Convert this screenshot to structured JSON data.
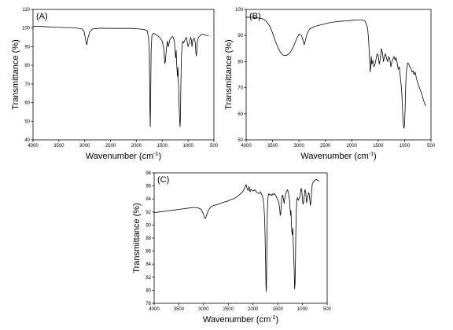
{
  "chart_data": [
    {
      "type": "line",
      "panel": "(A)",
      "xlabel": "Wavenumber (cm",
      "xlabel_sup": "-1",
      "xlabel_end": ")",
      "ylabel": "Transmittance (%)",
      "xlim": [
        4000,
        500
      ],
      "ylim": [
        40,
        110
      ],
      "x_ticks": [
        4000,
        3500,
        3000,
        2500,
        2000,
        1500,
        1000,
        500
      ],
      "y_ticks": [
        40,
        50,
        60,
        70,
        80,
        90,
        100,
        110
      ],
      "series": [
        {
          "x": [
            4000,
            3800,
            3600,
            3400,
            3200,
            3050,
            3010,
            2985,
            2960,
            2935,
            2900,
            2850,
            2700,
            2500,
            2300,
            2100,
            1950,
            1850,
            1790,
            1765,
            1750,
            1740,
            1732,
            1725,
            1715,
            1700,
            1680,
            1650,
            1600,
            1550,
            1500,
            1470,
            1450,
            1440,
            1420,
            1400,
            1385,
            1370,
            1350,
            1320,
            1300,
            1280,
            1260,
            1250,
            1240,
            1230,
            1220,
            1205,
            1195,
            1185,
            1175,
            1165,
            1155,
            1148,
            1140,
            1130,
            1115,
            1100,
            1090,
            1070,
            1050,
            1030,
            1015,
            1000,
            980,
            960,
            950,
            935,
            925,
            915,
            900,
            880,
            860,
            850,
            840,
            830,
            820,
            800,
            780,
            760,
            740,
            720,
            700,
            680,
            660,
            640,
            620,
            600
          ],
          "y": [
            101,
            100.8,
            100.5,
            100.3,
            100.2,
            99.5,
            98,
            94,
            91,
            95,
            98,
            99.5,
            99.9,
            99.8,
            99.8,
            99.8,
            99.5,
            99.3,
            98.5,
            95,
            88,
            60,
            47,
            60,
            88,
            96,
            97,
            97,
            96,
            95,
            93,
            89,
            81,
            82,
            89,
            93,
            90,
            91.5,
            94,
            95,
            95.5,
            94.5,
            92,
            87,
            84,
            88,
            80,
            74,
            79,
            70,
            60,
            51,
            47,
            52,
            68,
            84,
            91,
            93,
            92,
            93,
            94.5,
            95,
            92,
            90,
            92,
            94,
            95,
            93.5,
            90,
            92.5,
            94,
            94.5,
            92,
            87,
            85,
            88,
            93,
            95,
            95.5,
            96,
            96.5,
            96.8,
            96.5,
            96.3,
            96.2,
            96.1,
            96,
            95.8
          ]
        }
      ]
    },
    {
      "type": "line",
      "panel": "(B)",
      "xlabel": "Wavenumber (cm",
      "xlabel_sup": "-1",
      "xlabel_end": ")",
      "ylabel": "Transmittance (%)",
      "xlim": [
        4000,
        500
      ],
      "ylim": [
        50,
        100
      ],
      "x_ticks": [
        4000,
        3500,
        3000,
        2500,
        2000,
        1500,
        1000,
        500
      ],
      "y_ticks": [
        50,
        60,
        70,
        80,
        90,
        100
      ],
      "series": [
        {
          "x": [
            4000,
            3900,
            3800,
            3700,
            3650,
            3600,
            3550,
            3500,
            3450,
            3400,
            3350,
            3300,
            3250,
            3200,
            3150,
            3100,
            3050,
            3000,
            2950,
            2920,
            2900,
            2880,
            2850,
            2800,
            2700,
            2600,
            2500,
            2400,
            2300,
            2200,
            2100,
            2000,
            1900,
            1800,
            1750,
            1700,
            1680,
            1660,
            1650,
            1640,
            1630,
            1620,
            1600,
            1580,
            1560,
            1540,
            1520,
            1500,
            1480,
            1460,
            1440,
            1420,
            1400,
            1380,
            1360,
            1340,
            1320,
            1300,
            1280,
            1260,
            1240,
            1220,
            1200,
            1180,
            1160,
            1140,
            1120,
            1100,
            1080,
            1060,
            1050,
            1040,
            1030,
            1020,
            1010,
            1000,
            990,
            980,
            970,
            960,
            950,
            940,
            920,
            900,
            880,
            860,
            840,
            820,
            800,
            780,
            760,
            740,
            720,
            700,
            680,
            660,
            640,
            620,
            600
          ],
          "y": [
            97,
            97,
            96.8,
            96.5,
            96,
            95,
            93.5,
            91,
            88,
            85.5,
            83.5,
            82.5,
            82.3,
            82.8,
            84,
            86,
            88.5,
            90.5,
            90,
            88,
            86.5,
            88,
            90.5,
            92.5,
            93.5,
            94,
            94.5,
            95,
            95.3,
            95.5,
            95.6,
            95.8,
            96,
            96,
            95.5,
            93,
            88,
            80,
            76,
            78,
            82,
            79,
            80.5,
            78,
            79,
            81,
            83,
            82.5,
            79,
            81,
            85,
            83.5,
            80,
            82,
            83,
            81,
            80,
            82,
            81,
            78,
            80,
            81,
            82,
            80.5,
            81.5,
            79.5,
            77,
            78,
            74,
            70,
            67,
            62,
            58,
            55,
            54.5,
            56,
            62,
            70,
            75,
            77,
            78.5,
            79.5,
            79,
            78,
            77.5,
            76,
            76.5,
            75,
            76,
            74,
            72.5,
            71,
            70,
            69,
            68,
            66.5,
            65,
            64,
            63
          ]
        }
      ]
    },
    {
      "type": "line",
      "panel": "(C)",
      "xlabel": "Wavenumber (cm",
      "xlabel_sup": "-1",
      "xlabel_end": ")",
      "ylabel": "Transmittance (%)",
      "xlim": [
        4000,
        500
      ],
      "ylim": [
        78,
        98
      ],
      "x_ticks": [
        4000,
        3500,
        3000,
        2500,
        2000,
        1500,
        1000,
        500
      ],
      "y_ticks": [
        78,
        80,
        82,
        84,
        86,
        88,
        90,
        92,
        94,
        96,
        98
      ],
      "series": [
        {
          "x": [
            4000,
            3900,
            3800,
            3700,
            3600,
            3500,
            3400,
            3300,
            3200,
            3100,
            3050,
            3010,
            2985,
            2960,
            2935,
            2900,
            2850,
            2800,
            2700,
            2600,
            2500,
            2450,
            2400,
            2350,
            2300,
            2250,
            2200,
            2160,
            2140,
            2120,
            2100,
            2080,
            2060,
            2040,
            2000,
            1960,
            1920,
            1880,
            1850,
            1820,
            1800,
            1780,
            1765,
            1755,
            1745,
            1738,
            1730,
            1725,
            1718,
            1710,
            1700,
            1690,
            1680,
            1660,
            1640,
            1620,
            1600,
            1580,
            1560,
            1540,
            1520,
            1500,
            1480,
            1460,
            1450,
            1440,
            1430,
            1420,
            1410,
            1400,
            1385,
            1370,
            1350,
            1320,
            1300,
            1280,
            1260,
            1250,
            1240,
            1232,
            1225,
            1215,
            1205,
            1195,
            1185,
            1175,
            1165,
            1158,
            1150,
            1142,
            1135,
            1125,
            1115,
            1100,
            1085,
            1070,
            1050,
            1030,
            1020,
            1010,
            1000,
            990,
            975,
            960,
            950,
            935,
            925,
            915,
            900,
            880,
            870,
            860,
            850,
            840,
            830,
            820,
            810,
            800,
            780,
            760,
            740,
            720,
            700,
            680,
            660
          ],
          "y": [
            91.9,
            92,
            92.1,
            92.2,
            92.3,
            92.4,
            92.5,
            92.6,
            92.7,
            92.6,
            92.4,
            91.8,
            91.2,
            91,
            91.6,
            92.3,
            92.8,
            93,
            93.2,
            93.5,
            93.7,
            93.9,
            94,
            94.2,
            94.5,
            94.8,
            95.2,
            95.8,
            96.2,
            95.6,
            95.3,
            95.9,
            95.1,
            95.5,
            95.2,
            95.4,
            95,
            94.8,
            95.1,
            94.6,
            94.2,
            93,
            91,
            88,
            84,
            80.6,
            79.8,
            83,
            88,
            92,
            94,
            94.6,
            94.8,
            94.6,
            94.7,
            94.5,
            94.8,
            94.7,
            94.8,
            94.5,
            94.2,
            93.8,
            93.5,
            92.5,
            91.5,
            91.7,
            92.8,
            93.8,
            94.5,
            94.6,
            94,
            93.3,
            94.5,
            95.2,
            95.4,
            94.8,
            93.8,
            92.5,
            91.5,
            92.2,
            90.5,
            89,
            88.5,
            89.5,
            87,
            85,
            82.5,
            80.2,
            81,
            84,
            88.5,
            92,
            93.8,
            94.2,
            93.8,
            94,
            94.4,
            95.5,
            95.6,
            95,
            93.8,
            93.2,
            93.6,
            94.6,
            95.4,
            95.2,
            94.2,
            93.4,
            94.2,
            94.8,
            95,
            94.5,
            93.8,
            93,
            93.5,
            94.6,
            95.5,
            96.3,
            96.6,
            96.8,
            96.9,
            97,
            96.9,
            96.8,
            96.7
          ]
        }
      ]
    }
  ]
}
